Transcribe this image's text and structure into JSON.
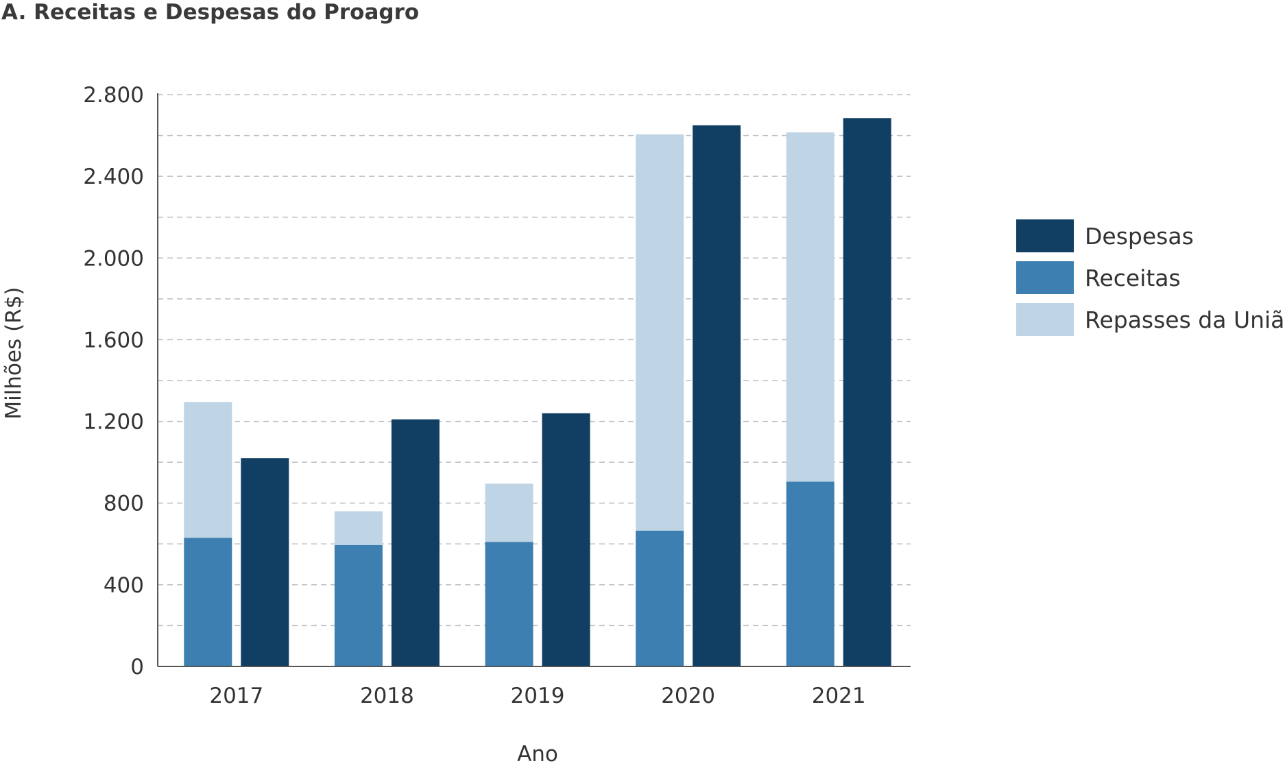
{
  "chart_data": {
    "type": "bar",
    "title": "A. Receitas e Despesas do Proagro",
    "xlabel": "Ano",
    "ylabel": "Milhões (R$)",
    "categories": [
      "2017",
      "2018",
      "2019",
      "2020",
      "2021"
    ],
    "ylim": [
      0,
      2800
    ],
    "yticks": [
      0,
      400,
      800,
      1200,
      1600,
      2000,
      2400,
      2800
    ],
    "ytick_labels": [
      "0",
      "400",
      "800",
      "1.200",
      "1.600",
      "2.000",
      "2.400",
      "2.800"
    ],
    "grid": true,
    "legend_position": "right",
    "series": [
      {
        "name": "Receitas",
        "stack": "receitas",
        "color": "#3d7fb0",
        "values": [
          630,
          595,
          610,
          665,
          905
        ]
      },
      {
        "name": "Repasses da União",
        "stack": "receitas",
        "color": "#bfd4e5",
        "values": [
          665,
          165,
          285,
          1940,
          1710
        ]
      },
      {
        "name": "Despesas",
        "stack": "despesas",
        "color": "#113f63",
        "values": [
          1020,
          1210,
          1240,
          2650,
          2685
        ]
      }
    ],
    "legend": [
      {
        "name": "Despesas",
        "color": "#113f63"
      },
      {
        "name": "Receitas",
        "color": "#3d7fb0"
      },
      {
        "name": "Repasses da União",
        "color": "#bfd4e5"
      }
    ]
  }
}
